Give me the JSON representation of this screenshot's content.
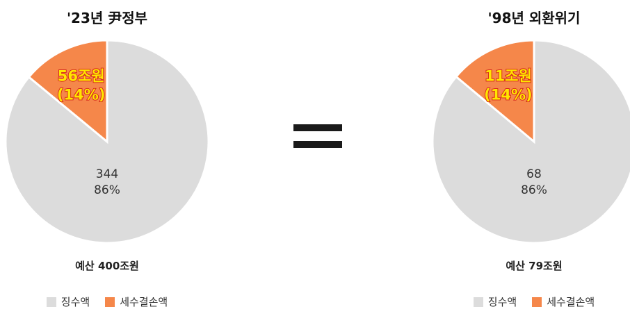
{
  "chart_data": [
    {
      "type": "pie",
      "title": "'23년 尹정부",
      "total_label": "예산 400조원",
      "slices": [
        {
          "name": "징수액",
          "value": 344,
          "label": "344",
          "pct_label": "86%",
          "color": "#dcdcdc"
        },
        {
          "name": "세수결손액",
          "value": 56,
          "label": "56조원",
          "pct_label": "(14%)",
          "color": "#f5874a"
        }
      ],
      "legend": [
        "징수액",
        "세수결손액"
      ],
      "legend_position": "bottom"
    },
    {
      "type": "pie",
      "title": "'98년 외환위기",
      "total_label": "예산 79조원",
      "slices": [
        {
          "name": "징수액",
          "value": 68,
          "label": "68",
          "pct_label": "86%",
          "color": "#dcdcdc"
        },
        {
          "name": "세수결손액",
          "value": 11,
          "label": "11조원",
          "pct_label": "(14%)",
          "color": "#f5874a"
        }
      ],
      "legend": [
        "징수액",
        "세수결손액"
      ],
      "legend_position": "bottom"
    }
  ]
}
